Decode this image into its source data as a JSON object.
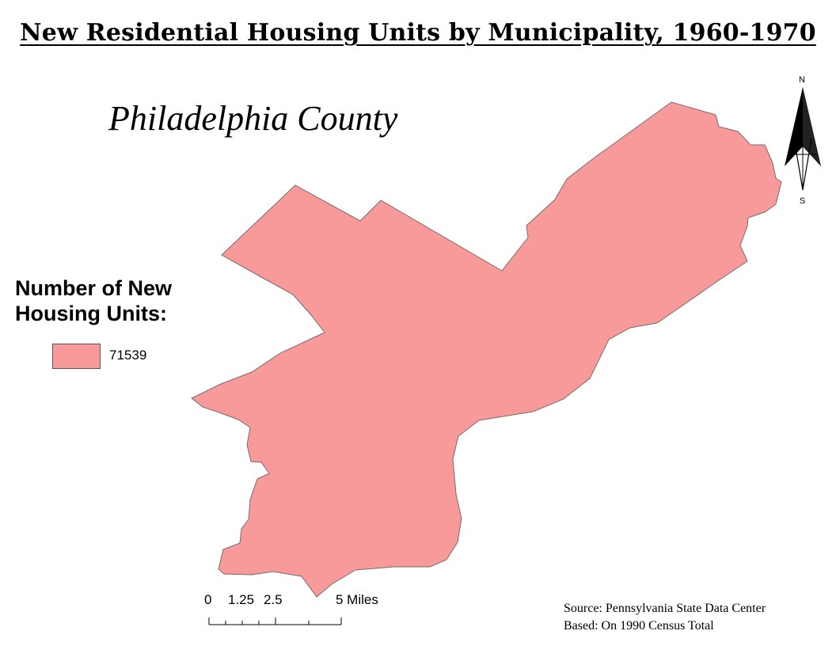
{
  "map_title": "New Residential Housing Units by Municipality, 1960-1970",
  "county_name": "Philadelphia County",
  "legend": {
    "title_line1": "Number of New",
    "title_line2": "Housing Units:",
    "items": [
      {
        "label": "71539",
        "color": "#f99a9a"
      }
    ]
  },
  "region": {
    "name": "Philadelphia County",
    "fill": "#f99a9a",
    "outline": "#7a6a6a"
  },
  "scale_bar": {
    "labels": [
      "0",
      "1.25",
      "2.5",
      "5 Miles"
    ]
  },
  "north_arrow": {
    "north_label": "N",
    "south_label": "S",
    "icon": "north-arrow-icon"
  },
  "source": {
    "line1": "Source: Pennsylvania State Data Center",
    "line2": "Based: On 1990 Census Total"
  }
}
